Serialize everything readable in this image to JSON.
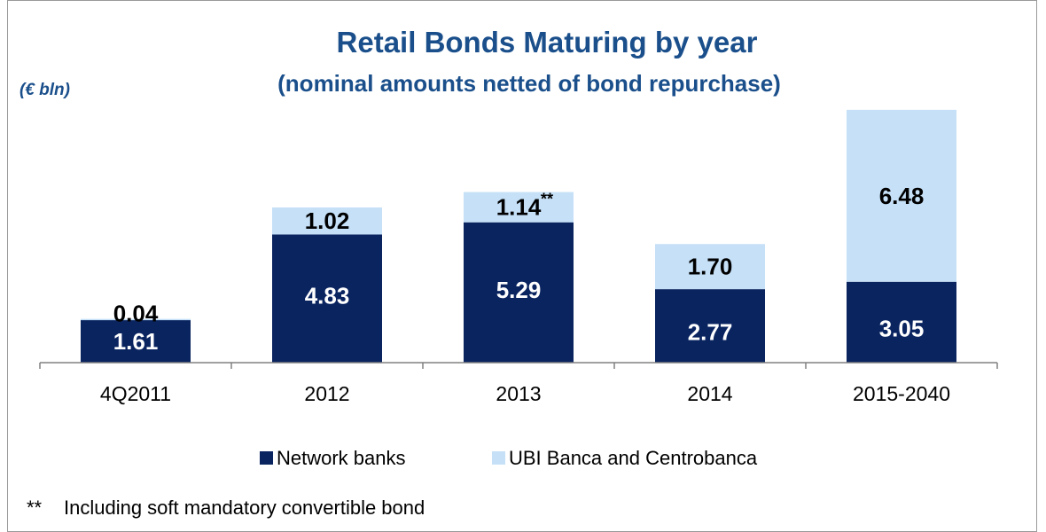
{
  "chart_data": {
    "type": "bar",
    "stacked": true,
    "title": "Retail Bonds Maturing by year",
    "subtitle": "(nominal amounts netted of bond repurchase)",
    "unit_label": "(€ bln)",
    "categories": [
      "4Q2011",
      "2012",
      "2013",
      "2014",
      "2015-2040"
    ],
    "series": [
      {
        "name": "Network banks",
        "color": "#0a2460",
        "values": [
          1.61,
          4.83,
          5.29,
          2.77,
          3.05
        ],
        "labels": [
          "1.61",
          "4.83",
          "5.29",
          "2.77",
          "3.05"
        ]
      },
      {
        "name": "UBI Banca and Centrobanca",
        "color": "#c5e0f7",
        "values": [
          0.04,
          1.02,
          1.14,
          1.7,
          6.48
        ],
        "labels": [
          "0.04",
          "1.02",
          "1.14",
          "1.70",
          "6.48"
        ]
      }
    ],
    "annotations": [
      {
        "category": "2013",
        "series": "UBI Banca and Centrobanca",
        "text": "**"
      }
    ],
    "legend_position": "bottom-center",
    "grid": false
  },
  "footnote": {
    "marker": "**",
    "text": "Including soft mandatory convertible bond"
  }
}
